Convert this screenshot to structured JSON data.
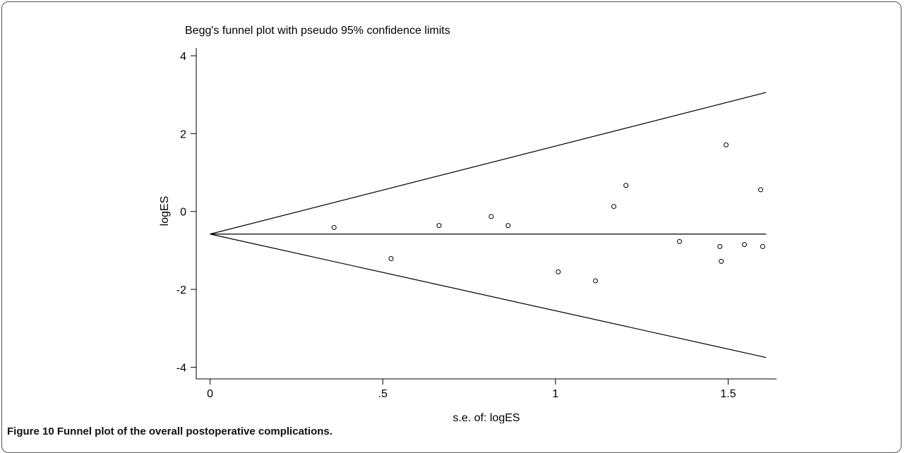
{
  "chart_data": {
    "type": "scatter",
    "title": "Begg's funnel plot with pseudo 95% confidence limits",
    "x_label": "s.e. of: logES",
    "y_label": "logES",
    "x": [
      0.359,
      0.524,
      0.663,
      0.814,
      0.863,
      1.008,
      1.116,
      1.169,
      1.204,
      1.359,
      1.476,
      1.48,
      1.494,
      1.547,
      1.594,
      1.6
    ],
    "y": [
      -0.41,
      -1.21,
      -0.36,
      -0.13,
      -0.36,
      -1.55,
      -1.78,
      0.13,
      0.67,
      -0.77,
      -0.9,
      -1.28,
      1.71,
      -0.85,
      0.56,
      -0.9
    ],
    "color": "#000000",
    "funnel": {
      "x": [
        1.61,
        0,
        1.61
      ],
      "y": [
        3.06,
        -0.58,
        -3.75
      ]
    },
    "center": {
      "x": [
        0,
        1.61
      ],
      "y": [
        -0.58,
        -0.58
      ]
    },
    "xlim": [
      -0.04,
      1.64
    ],
    "ylim": [
      -4.3,
      4.2
    ],
    "xticks": [
      0,
      {
        "value": 0.5,
        "label": ".5"
      },
      1,
      1.5
    ],
    "yticks": [
      -4,
      -2,
      0,
      2,
      4
    ]
  },
  "caption": {
    "label": "Figure 10",
    "text": "Funnel plot of the overall postoperative complications."
  }
}
